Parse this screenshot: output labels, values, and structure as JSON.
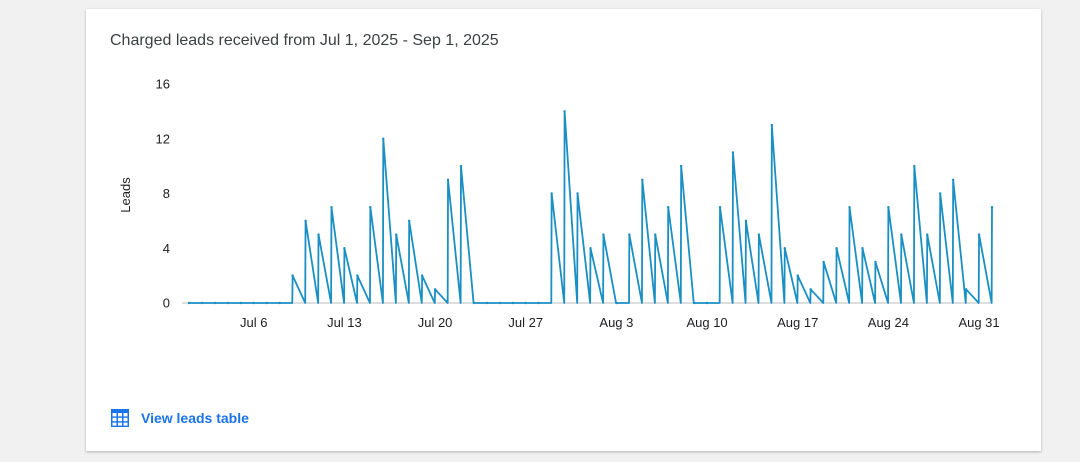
{
  "card": {
    "title": "Charged leads received from Jul 1, 2025 - Sep 1, 2025",
    "link_label": "View leads table",
    "link_icon": "table-icon"
  },
  "colors": {
    "line": "#1a8fc4",
    "link": "#1a73e8",
    "axis": "#bdbdbd"
  },
  "chart_data": {
    "type": "line",
    "title": "Charged leads received from Jul 1, 2025 - Sep 1, 2025",
    "xlabel": "",
    "ylabel": "Leads",
    "ylim": [
      0,
      16
    ],
    "yticks": [
      0,
      4,
      8,
      12,
      16
    ],
    "xticks": [
      "Jul 6",
      "Jul 13",
      "Jul 20",
      "Jul 27",
      "Aug 3",
      "Aug 10",
      "Aug 17",
      "Aug 24",
      "Aug 31"
    ],
    "grid": false,
    "x": [
      "Jul 1",
      "Jul 2",
      "Jul 3",
      "Jul 4",
      "Jul 5",
      "Jul 6",
      "Jul 7",
      "Jul 8",
      "Jul 9",
      "Jul 10",
      "Jul 11",
      "Jul 12",
      "Jul 13",
      "Jul 14",
      "Jul 15",
      "Jul 16",
      "Jul 17",
      "Jul 18",
      "Jul 19",
      "Jul 20",
      "Jul 21",
      "Jul 22",
      "Jul 23",
      "Jul 24",
      "Jul 25",
      "Jul 26",
      "Jul 27",
      "Jul 28",
      "Jul 29",
      "Jul 30",
      "Jul 31",
      "Aug 1",
      "Aug 2",
      "Aug 3",
      "Aug 4",
      "Aug 5",
      "Aug 6",
      "Aug 7",
      "Aug 8",
      "Aug 9",
      "Aug 10",
      "Aug 11",
      "Aug 12",
      "Aug 13",
      "Aug 14",
      "Aug 15",
      "Aug 16",
      "Aug 17",
      "Aug 18",
      "Aug 19",
      "Aug 20",
      "Aug 21",
      "Aug 22",
      "Aug 23",
      "Aug 24",
      "Aug 25",
      "Aug 26",
      "Aug 27",
      "Aug 28",
      "Aug 29",
      "Aug 30",
      "Aug 31",
      "Sep 1"
    ],
    "series": [
      {
        "name": "",
        "values": [
          0,
          0,
          0,
          0,
          0,
          0,
          0,
          0,
          2,
          6,
          5,
          7,
          4,
          2,
          7,
          12,
          5,
          6,
          2,
          1,
          9,
          10,
          0,
          0,
          0,
          0,
          0,
          0,
          8,
          14,
          8,
          4,
          5,
          0,
          5,
          9,
          5,
          7,
          10,
          0,
          0,
          7,
          11,
          6,
          5,
          13,
          4,
          2,
          1,
          3,
          4,
          7,
          4,
          3,
          7,
          5,
          10,
          5,
          8,
          9,
          1,
          5,
          7
        ]
      }
    ]
  }
}
